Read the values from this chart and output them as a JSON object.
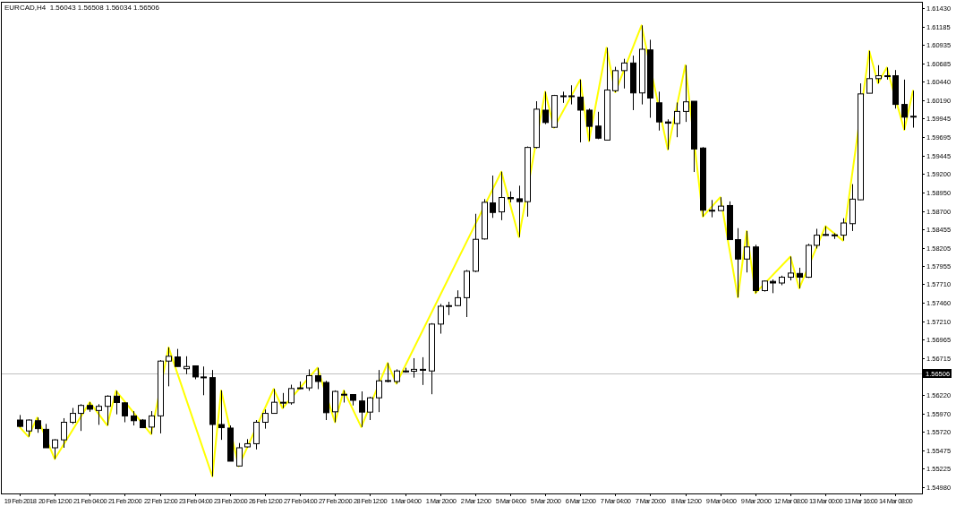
{
  "chart_data": {
    "type": "candlestick",
    "title": "EURCAD,H4  1.56043 1.56508 1.56034 1.56506",
    "categories": [
      "19 Feb 2018",
      null,
      null,
      null,
      "20 Feb 12:00",
      null,
      null,
      null,
      "21 Feb 04:00",
      null,
      null,
      null,
      "21 Feb 20:00",
      null,
      null,
      null,
      "22 Feb 12:00",
      null,
      null,
      null,
      "23 Feb 04:00",
      null,
      null,
      null,
      "23 Feb 20:00",
      null,
      null,
      null,
      "26 Feb 12:00",
      null,
      null,
      null,
      "27 Feb 04:00",
      null,
      null,
      null,
      "27 Feb 20:00",
      null,
      null,
      null,
      "28 Feb 12:00",
      null,
      null,
      null,
      "1 Mar 04:00",
      null,
      null,
      null,
      "1 Mar 20:00",
      null,
      null,
      null,
      "2 Mar 12:00",
      null,
      null,
      null,
      "5 Mar 04:00",
      null,
      null,
      null,
      "5 Mar 20:00",
      null,
      null,
      null,
      "6 Mar 12:00",
      null,
      null,
      null,
      "7 Mar 04:00",
      null,
      null,
      null,
      "7 Mar 20:00",
      null,
      null,
      null,
      "8 Mar 12:00",
      null,
      null,
      null,
      "9 Mar 04:00",
      null,
      null,
      null,
      "9 Mar 20:00",
      null,
      null,
      null,
      "12 Mar 08:00",
      null,
      null,
      null,
      "13 Mar 00:00",
      null,
      null,
      null,
      "13 Mar 16:00",
      null,
      null,
      null,
      "14 Mar 08:00",
      null,
      null
    ],
    "ohlc": [
      [
        1.5588,
        1.55948,
        1.55785,
        1.55794
      ],
      [
        1.55733,
        1.55888,
        1.55656,
        1.5588
      ],
      [
        1.55871,
        1.55914,
        1.55708,
        1.55764
      ],
      [
        1.55755,
        1.55828,
        1.55506,
        1.55506
      ],
      [
        1.55506,
        1.55622,
        1.55355,
        1.55613
      ],
      [
        1.55613,
        1.55905,
        1.55506,
        1.5585
      ],
      [
        1.5585,
        1.56043,
        1.55828,
        1.5597
      ],
      [
        1.5597,
        1.56094,
        1.55733,
        1.56077
      ],
      [
        1.56077,
        1.5612,
        1.55991,
        1.56026
      ],
      [
        1.56009,
        1.56094,
        1.55815,
        1.56065
      ],
      [
        1.56065,
        1.56215,
        1.55807,
        1.56202
      ],
      [
        1.56202,
        1.56275,
        1.55957,
        1.56116
      ],
      [
        1.56112,
        1.5612,
        1.5585,
        1.55936
      ],
      [
        1.55936,
        1.56,
        1.55807,
        1.55871
      ],
      [
        1.5588,
        1.55893,
        1.55777,
        1.55777
      ],
      [
        1.55785,
        1.56,
        1.5569,
        1.55936
      ],
      [
        1.55936,
        1.56688,
        1.557,
        1.56675
      ],
      [
        1.56675,
        1.5686,
        1.56335,
        1.5674
      ],
      [
        1.56731,
        1.56839,
        1.56602,
        1.56602
      ],
      [
        1.56572,
        1.5674,
        1.56499,
        1.56602
      ],
      [
        1.56611,
        1.56611,
        1.5643,
        1.56461
      ],
      [
        1.56461,
        1.56602,
        1.56215,
        1.56457
      ],
      [
        1.56452,
        1.56555,
        1.5512,
        1.5582
      ],
      [
        1.5582,
        1.5628,
        1.55613,
        1.55777
      ],
      [
        1.55772,
        1.55807,
        1.55325,
        1.55325
      ],
      [
        1.5526,
        1.5557,
        1.55256,
        1.55506
      ],
      [
        1.55518,
        1.55622,
        1.5551,
        1.55561
      ],
      [
        1.55561,
        1.5588,
        1.55484,
        1.5585
      ],
      [
        1.5585,
        1.56022,
        1.55764,
        1.5597
      ],
      [
        1.5597,
        1.563,
        1.5597,
        1.5612
      ],
      [
        1.5612,
        1.56245,
        1.5604,
        1.56116
      ],
      [
        1.56112,
        1.56357,
        1.56087,
        1.56305
      ],
      [
        1.56305,
        1.564,
        1.56297,
        1.56314
      ],
      [
        1.56314,
        1.56564,
        1.56275,
        1.56478
      ],
      [
        1.56478,
        1.56585,
        1.56297,
        1.564
      ],
      [
        1.56387,
        1.56409,
        1.5588,
        1.55979
      ],
      [
        1.55991,
        1.5628,
        1.5585,
        1.56266
      ],
      [
        1.56228,
        1.5628,
        1.56116,
        1.56224
      ],
      [
        1.56224,
        1.56224,
        1.56077,
        1.56146
      ],
      [
        1.56137,
        1.56266,
        1.55785,
        1.55987
      ],
      [
        1.55987,
        1.56194,
        1.5588,
        1.5618
      ],
      [
        1.5618,
        1.56555,
        1.55987,
        1.56409
      ],
      [
        1.56409,
        1.5665,
        1.56387,
        1.56413
      ],
      [
        1.564,
        1.56564,
        1.5637,
        1.56542
      ],
      [
        1.56542,
        1.56585,
        1.5652,
        1.56538
      ],
      [
        1.56538,
        1.56714,
        1.56452,
        1.56564
      ],
      [
        1.56564,
        1.56727,
        1.56353,
        1.56551
      ],
      [
        1.56542,
        1.57187,
        1.56228,
        1.57174
      ],
      [
        1.57174,
        1.57445,
        1.57045,
        1.57415
      ],
      [
        1.57415,
        1.57475,
        1.57295,
        1.57423
      ],
      [
        1.57423,
        1.57629,
        1.57415,
        1.5753
      ],
      [
        1.5753,
        1.57904,
        1.57269,
        1.57887
      ],
      [
        1.57887,
        1.58661,
        1.57874,
        1.58317
      ],
      [
        1.58322,
        1.58859,
        1.58313,
        1.58816
      ],
      [
        1.58808,
        1.59177,
        1.58606,
        1.58679
      ],
      [
        1.58687,
        1.59229,
        1.58575,
        1.58881
      ],
      [
        1.58881,
        1.58963,
        1.58816,
        1.58864
      ],
      [
        1.58864,
        1.5904,
        1.58347,
        1.58825
      ],
      [
        1.58825,
        1.59569,
        1.58623,
        1.59556
      ],
      [
        1.59556,
        1.60179,
        1.59543,
        1.60072
      ],
      [
        1.60059,
        1.60308,
        1.5987,
        1.59892
      ],
      [
        1.59827,
        1.60265,
        1.59819,
        1.60257
      ],
      [
        1.60248,
        1.60308,
        1.60157,
        1.60252
      ],
      [
        1.60252,
        1.60394,
        1.60136,
        1.60248
      ],
      [
        1.60235,
        1.60471,
        1.59625,
        1.60059
      ],
      [
        1.60059,
        1.6008,
        1.59642,
        1.5984
      ],
      [
        1.59844,
        1.60037,
        1.59668,
        1.59681
      ],
      [
        1.59655,
        1.60901,
        1.59655,
        1.6033
      ],
      [
        1.60321,
        1.60643,
        1.603,
        1.60592
      ],
      [
        1.60592,
        1.60751,
        1.60351,
        1.60695
      ],
      [
        1.60695,
        1.60794,
        1.60059,
        1.60291
      ],
      [
        1.60291,
        1.61202,
        1.60136,
        1.6088
      ],
      [
        1.60871,
        1.61008,
        1.59956,
        1.60222
      ],
      [
        1.60158,
        1.60308,
        1.59784,
        1.599
      ],
      [
        1.599,
        1.59935,
        1.59526,
        1.59883
      ],
      [
        1.59879,
        1.60162,
        1.59694,
        1.60042
      ],
      [
        1.60042,
        1.60665,
        1.599,
        1.60171
      ],
      [
        1.60179,
        1.60179,
        1.59225,
        1.59535
      ],
      [
        1.59548,
        1.59561,
        1.58623,
        1.58709
      ],
      [
        1.58709,
        1.58847,
        1.58614,
        1.58705
      ],
      [
        1.58704,
        1.58885,
        1.58704,
        1.58765
      ],
      [
        1.58773,
        1.58829,
        1.58313,
        1.58313
      ],
      [
        1.58313,
        1.58468,
        1.57534,
        1.58051
      ],
      [
        1.58051,
        1.58429,
        1.5787,
        1.58214
      ],
      [
        1.58214,
        1.58244,
        1.57591,
        1.57625
      ],
      [
        1.57625,
        1.57763,
        1.57612,
        1.57754
      ],
      [
        1.5775,
        1.57776,
        1.57591,
        1.57728
      ],
      [
        1.57728,
        1.57827,
        1.57698,
        1.57806
      ],
      [
        1.57806,
        1.58085,
        1.57763,
        1.57862
      ],
      [
        1.57857,
        1.57934,
        1.57655,
        1.57806
      ],
      [
        1.57806,
        1.58257,
        1.57797,
        1.58236
      ],
      [
        1.58236,
        1.58459,
        1.58193,
        1.58373
      ],
      [
        1.58382,
        1.58494,
        1.58364,
        1.58377
      ],
      [
        1.58377,
        1.58399,
        1.58322,
        1.58373
      ],
      [
        1.58373,
        1.58601,
        1.583,
        1.58537
      ],
      [
        1.58528,
        1.59061,
        1.58429,
        1.58859
      ],
      [
        1.5885,
        1.6042,
        1.58846,
        1.60278
      ],
      [
        1.60287,
        1.60858,
        1.60287,
        1.60484
      ],
      [
        1.60484,
        1.60665,
        1.6042,
        1.60523
      ],
      [
        1.60523,
        1.60634,
        1.60471,
        1.60519
      ],
      [
        1.60523,
        1.606,
        1.6008,
        1.60136
      ],
      [
        1.60136,
        1.60471,
        1.59793,
        1.59964
      ],
      [
        1.59973,
        1.60321,
        1.59823,
        1.59977
      ]
    ],
    "series": [
      {
        "type": "line",
        "color": "#ffff00",
        "values": [
          1.55785,
          1.55656,
          1.55914,
          null,
          1.55355,
          null,
          null,
          null,
          1.5612,
          null,
          1.55807,
          1.56275,
          null,
          null,
          null,
          1.5569,
          null,
          1.5686,
          null,
          null,
          null,
          null,
          1.5512,
          1.5628,
          null,
          1.55256,
          null,
          null,
          null,
          1.563,
          1.5604,
          null,
          null,
          null,
          1.56585,
          null,
          1.5585,
          1.5628,
          null,
          1.55785,
          null,
          null,
          1.5665,
          1.5637,
          null,
          null,
          null,
          null,
          null,
          null,
          null,
          null,
          null,
          null,
          null,
          1.59229,
          null,
          1.58347,
          null,
          null,
          1.60308,
          1.59819,
          null,
          null,
          1.60471,
          1.59642,
          null,
          1.60901,
          1.603,
          null,
          null,
          1.61202,
          null,
          null,
          1.59526,
          null,
          1.60665,
          null,
          1.58623,
          null,
          1.58885,
          null,
          1.57534,
          1.58429,
          1.57591,
          null,
          null,
          null,
          1.58085,
          1.57655,
          null,
          null,
          1.58494,
          null,
          1.583,
          null,
          null,
          1.60858,
          1.6042,
          1.60634,
          null,
          1.59793,
          1.60321
        ]
      }
    ],
    "ylim": [
      1.5489,
      1.6152
    ],
    "yticks": [
      {
        "value": 1.6143,
        "label": "1.61430"
      },
      {
        "value": 1.61185,
        "label": "1.61185"
      },
      {
        "value": 1.60935,
        "label": "1.60935"
      },
      {
        "value": 1.60685,
        "label": "1.60685"
      },
      {
        "value": 1.6044,
        "label": "1.60440"
      },
      {
        "value": 1.6019,
        "label": "1.60190"
      },
      {
        "value": 1.59945,
        "label": "1.59945"
      },
      {
        "value": 1.59695,
        "label": "1.59695"
      },
      {
        "value": 1.59445,
        "label": "1.59445"
      },
      {
        "value": 1.592,
        "label": "1.59200"
      },
      {
        "value": 1.5895,
        "label": "1.58950"
      },
      {
        "value": 1.587,
        "label": "1.58700"
      },
      {
        "value": 1.58455,
        "label": "1.58455"
      },
      {
        "value": 1.58205,
        "label": "1.58205"
      },
      {
        "value": 1.57955,
        "label": "1.57955"
      },
      {
        "value": 1.5771,
        "label": "1.57710"
      },
      {
        "value": 1.5746,
        "label": "1.57460"
      },
      {
        "value": 1.5721,
        "label": "1.57210"
      },
      {
        "value": 1.56965,
        "label": "1.56965"
      },
      {
        "value": 1.56715,
        "label": "1.56715"
      },
      {
        "value": 1.5622,
        "label": "1.56220"
      },
      {
        "value": 1.5597,
        "label": "1.55970"
      },
      {
        "value": 1.5572,
        "label": "1.55720"
      },
      {
        "value": 1.55475,
        "label": "1.55475"
      },
      {
        "value": 1.55225,
        "label": "1.55225"
      },
      {
        "value": 1.5498,
        "label": "1.54980"
      }
    ],
    "ref_lines": [
      {
        "axis": "y",
        "value": 1.56506,
        "label": "1.56506",
        "color": "#c0c0c0"
      }
    ]
  }
}
